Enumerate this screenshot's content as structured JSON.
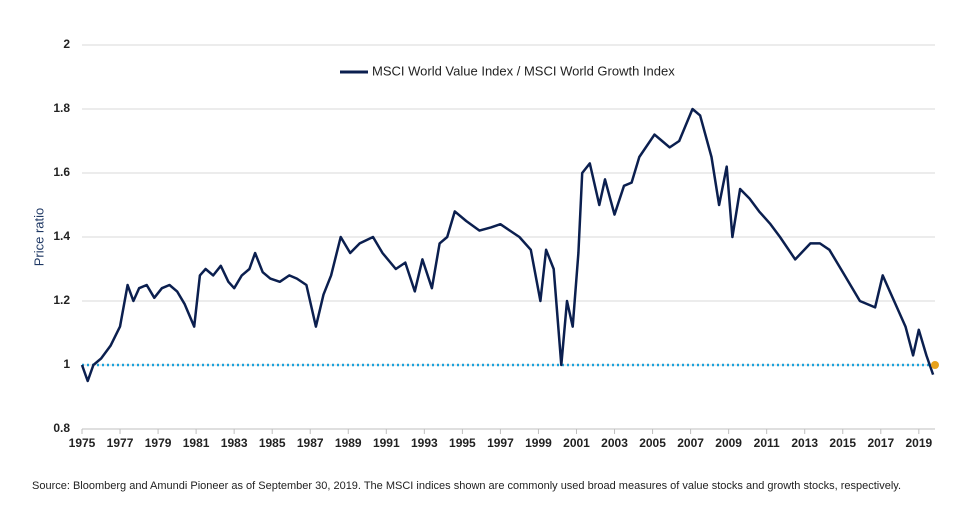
{
  "chart_data": {
    "type": "line",
    "y_label": "Price ratio",
    "x": [
      1975.0,
      1975.3,
      1975.6,
      1976.0,
      1976.5,
      1977.0,
      1977.4,
      1977.7,
      1978.0,
      1978.4,
      1978.8,
      1979.2,
      1979.6,
      1980.0,
      1980.4,
      1980.9,
      1981.2,
      1981.5,
      1981.9,
      1982.3,
      1982.7,
      1983.0,
      1983.4,
      1983.8,
      1984.1,
      1984.5,
      1984.9,
      1985.4,
      1985.9,
      1986.3,
      1986.8,
      1987.3,
      1987.7,
      1988.1,
      1988.6,
      1989.1,
      1989.6,
      1990.3,
      1990.8,
      1991.5,
      1992.0,
      1992.5,
      1992.9,
      1993.4,
      1993.8,
      1994.2,
      1994.6,
      1995.2,
      1995.9,
      1996.5,
      1997.0,
      1997.5,
      1998.0,
      1998.6,
      1999.1,
      1999.4,
      1999.8,
      2000.2,
      2000.5,
      2000.8,
      2001.1,
      2001.3,
      2001.7,
      2002.2,
      2002.5,
      2003.0,
      2003.5,
      2003.9,
      2004.3,
      2005.1,
      2005.5,
      2005.9,
      2006.4,
      2007.1,
      2007.5,
      2008.1,
      2008.5,
      2008.9,
      2009.2,
      2009.6,
      2010.1,
      2010.6,
      2011.2,
      2011.7,
      2012.5,
      2013.3,
      2013.8,
      2014.3,
      2015.1,
      2015.9,
      2016.7,
      2017.1,
      2017.7,
      2018.3,
      2018.7,
      2019.0,
      2019.4,
      2019.75
    ],
    "series": [
      {
        "name": "MSCI World Value Index / MSCI World Growth Index",
        "color": "#0b1f4f",
        "values": [
          1.0,
          0.95,
          1.0,
          1.02,
          1.06,
          1.12,
          1.25,
          1.2,
          1.24,
          1.25,
          1.21,
          1.24,
          1.25,
          1.23,
          1.19,
          1.12,
          1.28,
          1.3,
          1.28,
          1.31,
          1.26,
          1.24,
          1.28,
          1.3,
          1.35,
          1.29,
          1.27,
          1.26,
          1.28,
          1.27,
          1.25,
          1.12,
          1.22,
          1.28,
          1.4,
          1.35,
          1.38,
          1.4,
          1.35,
          1.3,
          1.32,
          1.23,
          1.33,
          1.24,
          1.38,
          1.4,
          1.48,
          1.45,
          1.42,
          1.43,
          1.44,
          1.42,
          1.4,
          1.36,
          1.2,
          1.36,
          1.3,
          1.0,
          1.2,
          1.12,
          1.35,
          1.6,
          1.63,
          1.5,
          1.58,
          1.47,
          1.56,
          1.57,
          1.65,
          1.72,
          1.7,
          1.68,
          1.7,
          1.8,
          1.78,
          1.65,
          1.5,
          1.62,
          1.4,
          1.55,
          1.52,
          1.48,
          1.44,
          1.4,
          1.33,
          1.38,
          1.38,
          1.36,
          1.28,
          1.2,
          1.18,
          1.28,
          1.2,
          1.12,
          1.03,
          1.11,
          1.03,
          0.97
        ]
      }
    ],
    "reference_line": {
      "value": 1,
      "color": "#1aa3dc",
      "end_color": "#e8a21c"
    },
    "xlim": [
      1975,
      2019.85
    ],
    "xticks": [
      1975,
      1977,
      1979,
      1981,
      1983,
      1985,
      1987,
      1989,
      1991,
      1993,
      1995,
      1997,
      1999,
      2001,
      2003,
      2005,
      2007,
      2009,
      2011,
      2013,
      2015,
      2017,
      2019
    ],
    "ylim": [
      0.8,
      2
    ],
    "yticks": [
      0.8,
      1,
      1.2,
      1.4,
      1.6,
      1.8,
      2
    ],
    "grid": true,
    "legend": "top",
    "source": "Source: Bloomberg and Amundi Pioneer as of September 30, 2019. The MSCI indices shown are commonly used broad measures of value stocks and growth stocks, respectively."
  }
}
